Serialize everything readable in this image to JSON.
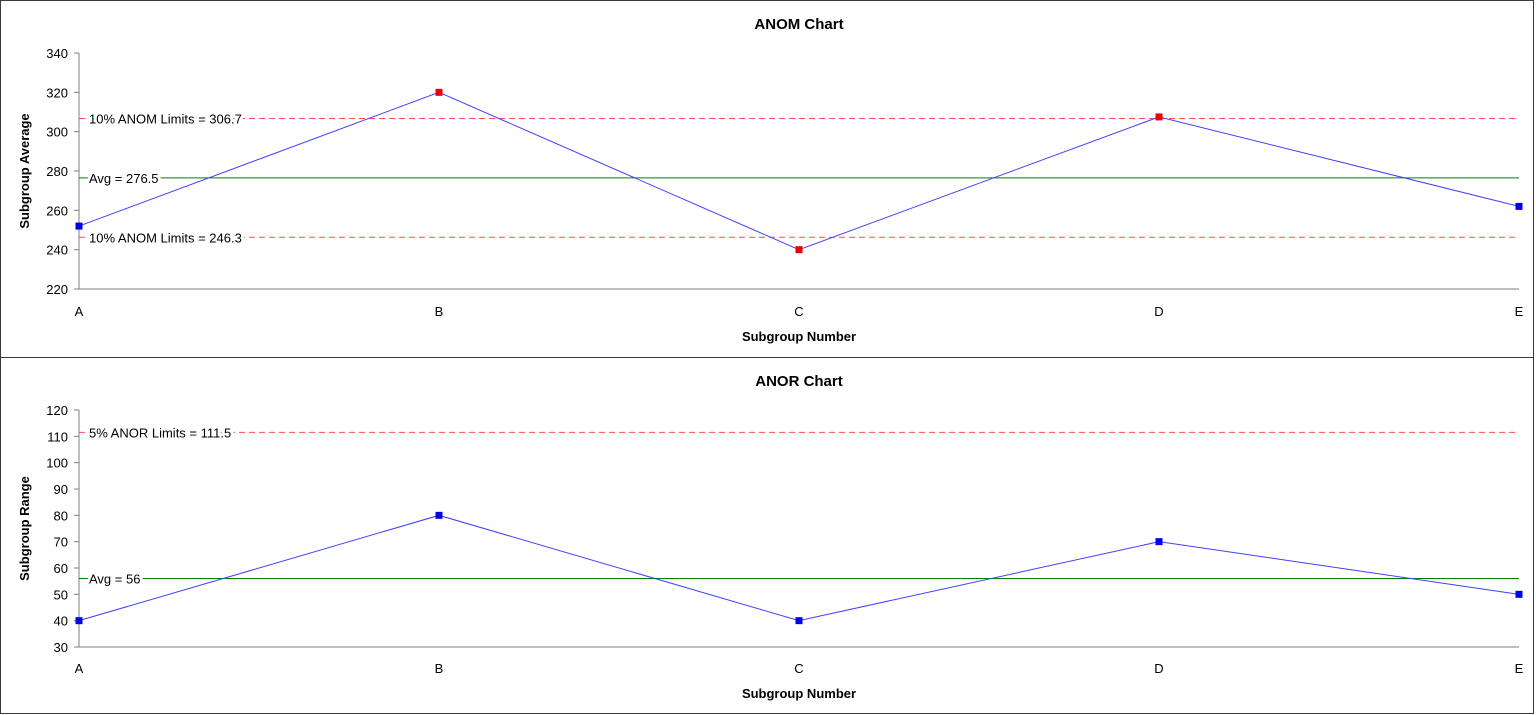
{
  "colors": {
    "series_line": "#4040ff",
    "normal_point": "#0000ee",
    "out_point": "#ee0000",
    "limit_line": "#ff4d4d",
    "avg_line": "#008000",
    "axis": "#7f7f7f",
    "text": "#000000"
  },
  "chart_data": [
    {
      "type": "line",
      "title": "ANOM Chart",
      "xlabel": "Subgroup Number",
      "ylabel": "Subgroup Average",
      "categories": [
        "A",
        "B",
        "C",
        "D",
        "E"
      ],
      "ylim": [
        220,
        340
      ],
      "yticks": [
        220,
        240,
        260,
        280,
        300,
        320,
        340
      ],
      "grid": false,
      "legend": "none",
      "series": [
        {
          "values": [
            252,
            320,
            240,
            307.5,
            262
          ],
          "point_status": [
            "in",
            "out",
            "out",
            "out",
            "in"
          ]
        }
      ],
      "reference_lines": [
        {
          "label": "10% ANOM Limits = 306.7",
          "value": 306.7,
          "style": "dashed",
          "color": "red"
        },
        {
          "label": "Avg = 276.5",
          "value": 276.5,
          "style": "solid",
          "color": "green"
        },
        {
          "label": "10% ANOM Limits = 246.3",
          "value": 246.3,
          "style": "dashed",
          "color": "red"
        }
      ]
    },
    {
      "type": "line",
      "title": "ANOR Chart",
      "xlabel": "Subgroup Number",
      "ylabel": "Subgroup Range",
      "categories": [
        "A",
        "B",
        "C",
        "D",
        "E"
      ],
      "ylim": [
        30,
        120
      ],
      "yticks": [
        30,
        40,
        50,
        60,
        70,
        80,
        90,
        100,
        110,
        120
      ],
      "grid": false,
      "legend": "none",
      "series": [
        {
          "values": [
            40,
            80,
            40,
            70,
            50
          ],
          "point_status": [
            "in",
            "in",
            "in",
            "in",
            "in"
          ]
        }
      ],
      "reference_lines": [
        {
          "label": "5% ANOR Limits = 111.5",
          "value": 111.5,
          "style": "dashed",
          "color": "red"
        },
        {
          "label": "Avg = 56",
          "value": 56,
          "style": "solid",
          "color": "green"
        }
      ]
    }
  ]
}
